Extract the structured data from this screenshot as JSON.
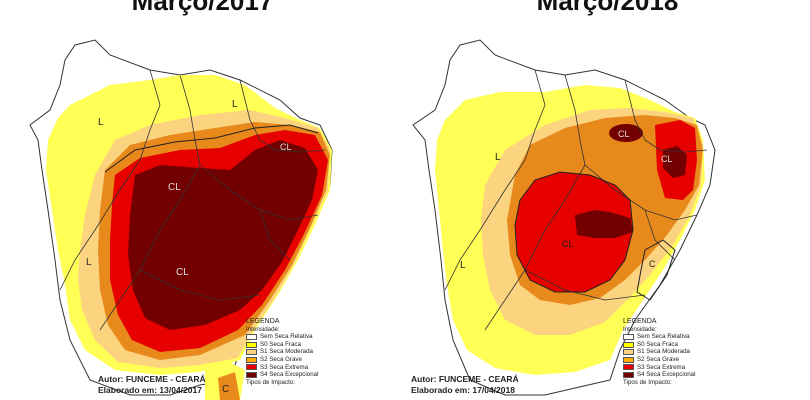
{
  "panels": [
    {
      "title": "Março/2017",
      "author": "Autor: FUNCEME - CEARÁ",
      "elaborated": "Elaborado em: 13/04/2017",
      "map_labels": [
        "L",
        "L",
        "CL",
        "CL",
        "L",
        "CL",
        "C"
      ]
    },
    {
      "title": "Março/2018",
      "author": "Autor: FUNCEME - CEARÁ",
      "elaborated": "Elaborado em: 17/04/2018",
      "map_labels": [
        "L",
        "CL",
        "CL",
        "CL",
        "L",
        "C"
      ]
    }
  ],
  "legend": {
    "title": "LEGENDA",
    "intensity_label": "Intensidade:",
    "items": [
      {
        "label": "Sem Seca Relativa",
        "color": "#ffffff"
      },
      {
        "label": "S0 Seca Fraca",
        "color": "#ffff00"
      },
      {
        "label": "S1 Seca Moderada",
        "color": "#fcd37f"
      },
      {
        "label": "S2 Seca Grave",
        "color": "#ffaa00"
      },
      {
        "label": "S3 Seca Extrema",
        "color": "#e60000"
      },
      {
        "label": "S4 Seca Excepcional",
        "color": "#730000"
      }
    ],
    "impact_label": "Tipos de Impacto:"
  },
  "colors": {
    "none": "#ffffff",
    "s0": "#ffff55",
    "s1": "#fcd37f",
    "s2": "#e8891c",
    "s3": "#e60000",
    "s4": "#730000",
    "border": "#333333"
  }
}
